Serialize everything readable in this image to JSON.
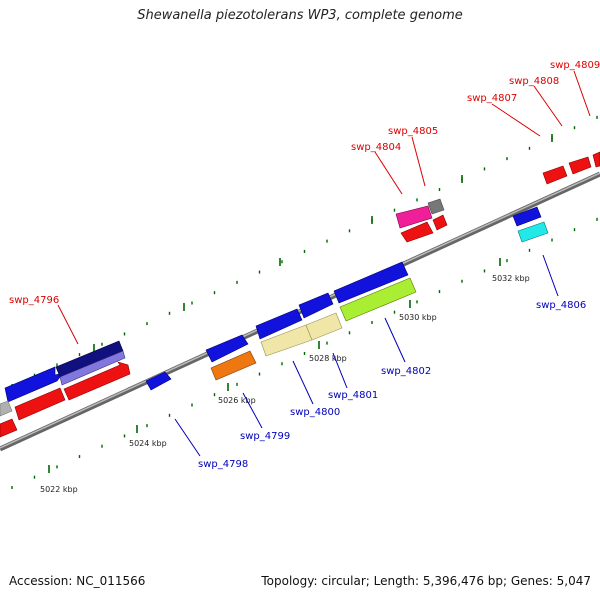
{
  "title": "Shewanella piezotolerans WP3, complete genome",
  "footer": {
    "accession": "Accession: NC_011566",
    "stats": "Topology: circular; Length: 5,396,476 bp; Genes: 5,047"
  },
  "colors": {
    "forward_label": "#dd0000",
    "reverse_label": "#0000bb",
    "backbone": "#888888",
    "tick": "#006600"
  },
  "ticks": [
    {
      "label": "5022 kbp"
    },
    {
      "label": "5024 kbp"
    },
    {
      "label": "5026 kbp"
    },
    {
      "label": "5028 kbp"
    },
    {
      "label": "5030 kbp"
    },
    {
      "label": "5032 kbp"
    }
  ],
  "labels": [
    {
      "name": "swp_4796",
      "strand": "forward"
    },
    {
      "name": "swp_4804",
      "strand": "forward"
    },
    {
      "name": "swp_4805",
      "strand": "forward"
    },
    {
      "name": "swp_4807",
      "strand": "forward"
    },
    {
      "name": "swp_4808",
      "strand": "forward"
    },
    {
      "name": "swp_4809",
      "strand": "forward"
    },
    {
      "name": "swp_4798",
      "strand": "reverse"
    },
    {
      "name": "swp_4799",
      "strand": "reverse"
    },
    {
      "name": "swp_4800",
      "strand": "reverse"
    },
    {
      "name": "swp_4801",
      "strand": "reverse"
    },
    {
      "name": "swp_4802",
      "strand": "reverse"
    },
    {
      "name": "swp_4806",
      "strand": "reverse"
    }
  ]
}
